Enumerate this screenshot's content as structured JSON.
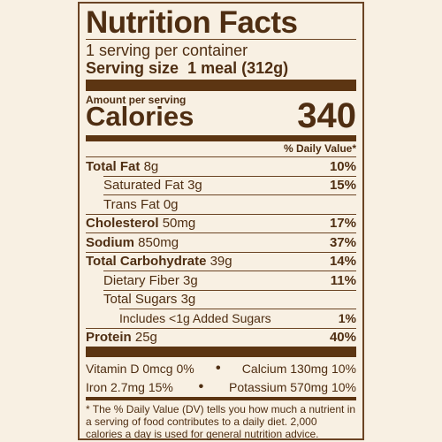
{
  "title": "Nutrition Facts",
  "servings": "1 serving per container",
  "serving_size": {
    "label": "Serving size",
    "value": "1 meal (312g)"
  },
  "amount_per_serving": "Amount per serving",
  "calories": {
    "label": "Calories",
    "value": 340
  },
  "dv_header": "% Daily Value*",
  "nutrients": [
    {
      "name": "Total Fat",
      "amount": "8g",
      "dv": "10%"
    },
    {
      "name": "Saturated Fat",
      "amount": "3g",
      "dv": "15%"
    },
    {
      "name": "Trans Fat",
      "amount": "0g"
    },
    {
      "name": "Cholesterol",
      "amount": "50mg",
      "dv": "17%"
    },
    {
      "name": "Sodium",
      "amount": "850mg",
      "dv": "37%"
    },
    {
      "name": "Total Carbohydrate",
      "amount": "39g",
      "dv": "14%"
    },
    {
      "name": "Dietary Fiber",
      "amount": "3g",
      "dv": "11%"
    },
    {
      "name": "Total Sugars",
      "amount": "3g"
    },
    {
      "name": "Includes <1g Added Sugars",
      "dv": "1%"
    },
    {
      "name": "Protein",
      "amount": "25g",
      "dv": "40%"
    }
  ],
  "vitamins": [
    {
      "name": "Vitamin D",
      "amount": "0mcg",
      "dv": "0%"
    },
    {
      "name": "Calcium",
      "amount": "130mg",
      "dv": "10%"
    },
    {
      "name": "Iron",
      "amount": "2.7mg",
      "dv": "15%"
    },
    {
      "name": "Potassium",
      "amount": "570mg",
      "dv": "10%"
    }
  ],
  "footnote": "* The % Daily Value (DV) tells you how much a nutrient in a serving of food contributes to a daily diet. 2,000 calories a day is used for general nutrition advice."
}
